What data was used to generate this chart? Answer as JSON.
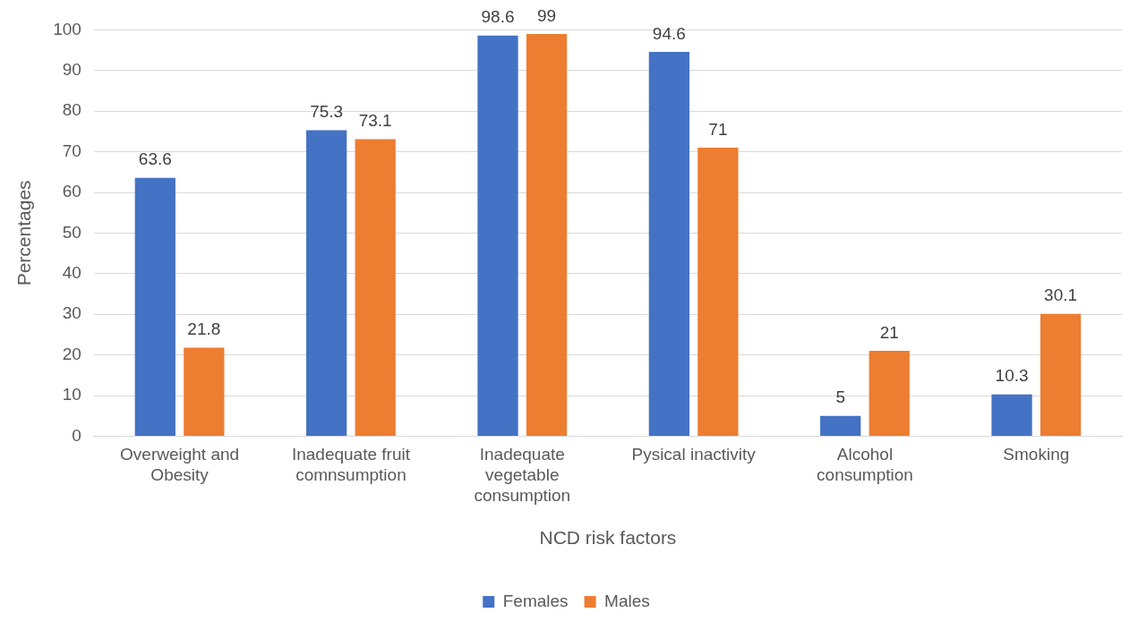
{
  "chart_data": {
    "type": "bar",
    "xlabel": "NCD risk factors",
    "ylabel": "Percentages",
    "categories": [
      "Overweight and Obesity",
      "Inadequate fruit comnsumption",
      "Inadequate vegetable consumption",
      "Pysical inactivity",
      "Alcohol consumption",
      "Smoking"
    ],
    "series": [
      {
        "name": "Females",
        "color": "#4472c4",
        "values": [
          63.6,
          75.3,
          98.6,
          94.6,
          5,
          10.3
        ]
      },
      {
        "name": "Males",
        "color": "#ed7d31",
        "values": [
          21.8,
          73.1,
          99,
          71,
          21,
          30.1
        ]
      }
    ],
    "ylim": [
      0,
      100
    ],
    "yticks": [
      0,
      10,
      20,
      30,
      40,
      50,
      60,
      70,
      80,
      90,
      100
    ],
    "grid": "y",
    "legend": "bottom",
    "data_labels": true
  }
}
